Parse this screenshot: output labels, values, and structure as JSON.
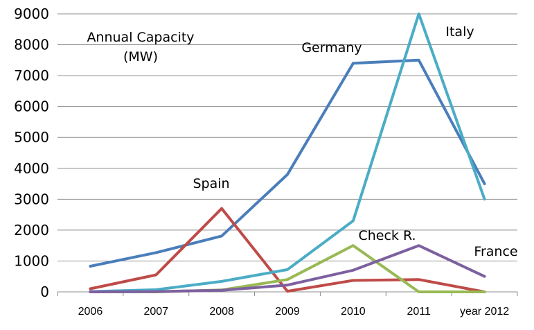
{
  "chart_data": {
    "type": "line",
    "title": "Annual Capacity",
    "title_unit": "(MW)",
    "categories": [
      "2006",
      "2007",
      "2008",
      "2009",
      "2010",
      "2011",
      "year 2012"
    ],
    "yticks": [
      "0",
      "1000",
      "2000",
      "3000",
      "4000",
      "5000",
      "6000",
      "7000",
      "8000",
      "9000"
    ],
    "ylim": [
      0,
      9000
    ],
    "grid": true,
    "legend": "none",
    "series": [
      {
        "name": "Germany",
        "color": "#4a7ebb",
        "values": [
          830,
          1270,
          1810,
          3800,
          7400,
          7500,
          3500
        ]
      },
      {
        "name": "Spain",
        "color": "#be4b48",
        "values": [
          100,
          550,
          2700,
          20,
          370,
          400,
          0
        ]
      },
      {
        "name": "Italy",
        "color": "#4bacc6",
        "values": [
          10,
          70,
          340,
          720,
          2300,
          9000,
          3000
        ]
      },
      {
        "name": "Check R.",
        "color": "#98b954",
        "values": [
          0,
          0,
          60,
          400,
          1500,
          0,
          0
        ]
      },
      {
        "name": "France",
        "color": "#7d60a0",
        "values": [
          0,
          10,
          50,
          220,
          700,
          1500,
          500
        ]
      }
    ],
    "annotations": [
      {
        "series_index": 0,
        "text": "Germany"
      },
      {
        "series_index": 1,
        "text": "Spain"
      },
      {
        "series_index": 2,
        "text": "Italy"
      },
      {
        "series_index": 3,
        "text": "Check R."
      },
      {
        "series_index": 4,
        "text": "France"
      }
    ]
  }
}
